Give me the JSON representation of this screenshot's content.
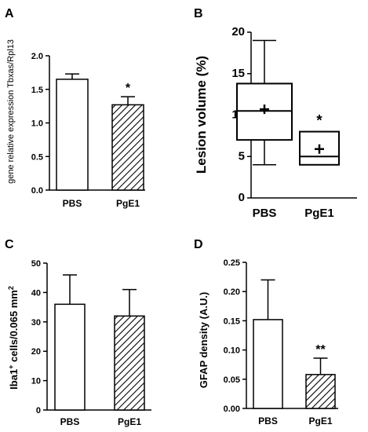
{
  "chart_data": [
    {
      "id": "A",
      "panel_label": "A",
      "type": "bar",
      "ylabel": "gene relative expression Tbxas/Rpl13",
      "ylim": [
        0,
        2.0
      ],
      "yticks": [
        "0.0",
        "0.5",
        "1.0",
        "1.5",
        "2.0"
      ],
      "categories": [
        "PBS",
        "PgE1"
      ],
      "values": [
        1.65,
        1.27
      ],
      "errors": [
        0.08,
        0.12
      ],
      "fills": [
        "open",
        "hatched"
      ],
      "annotations": [
        "",
        "*"
      ]
    },
    {
      "id": "B",
      "panel_label": "B",
      "type": "box",
      "ylabel": "Lesion volume (%)",
      "ylim": [
        0,
        20
      ],
      "yticks": [
        "0",
        "5",
        "10",
        "15",
        "20"
      ],
      "categories": [
        "PBS",
        "PgE1"
      ],
      "boxes": [
        {
          "min": 4,
          "q1": 7,
          "median": 10.5,
          "q3": 13.8,
          "max": 19,
          "mean": 10.7
        },
        {
          "min": 4,
          "q1": 4,
          "median": 5,
          "q3": 8,
          "max": 8,
          "mean": 5.9
        }
      ],
      "annotations": [
        "",
        "*"
      ]
    },
    {
      "id": "C",
      "panel_label": "C",
      "type": "bar",
      "ylabel": "Iba1+ cells/0.065 mm2",
      "ylim": [
        0,
        50
      ],
      "yticks": [
        "0",
        "10",
        "20",
        "30",
        "40",
        "50"
      ],
      "categories": [
        "PBS",
        "PgE1"
      ],
      "values": [
        36,
        32
      ],
      "errors": [
        10,
        9
      ],
      "fills": [
        "open",
        "hatched"
      ],
      "annotations": [
        "",
        ""
      ]
    },
    {
      "id": "D",
      "panel_label": "D",
      "type": "bar",
      "ylabel": "GFAP density (A.U.)",
      "ylim": [
        0,
        0.25
      ],
      "yticks": [
        "0.00",
        "0.05",
        "0.10",
        "0.15",
        "0.20",
        "0.25"
      ],
      "categories": [
        "PBS",
        "PgE1"
      ],
      "values": [
        0.152,
        0.058
      ],
      "errors": [
        0.068,
        0.028
      ],
      "fills": [
        "open",
        "hatched"
      ],
      "annotations": [
        "",
        "**"
      ]
    }
  ]
}
